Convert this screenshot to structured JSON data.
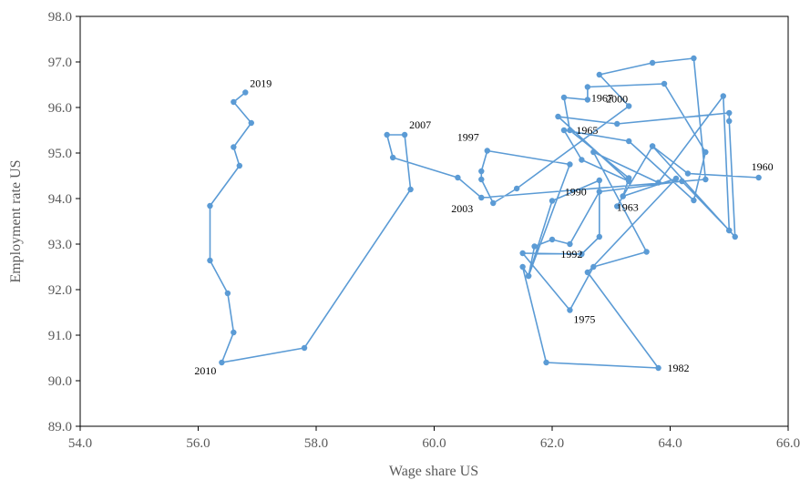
{
  "chart_data": {
    "type": "scatter",
    "title": "",
    "xlabel": "Wage share US",
    "ylabel": "Employment rate US",
    "xlim": [
      54.0,
      66.0
    ],
    "ylim": [
      89.0,
      98.0
    ],
    "x_ticks": [
      "54.0",
      "56.0",
      "58.0",
      "60.0",
      "62.0",
      "64.0",
      "66.0"
    ],
    "y_ticks": [
      "89.0",
      "90.0",
      "91.0",
      "92.0",
      "93.0",
      "94.0",
      "95.0",
      "96.0",
      "97.0",
      "98.0"
    ],
    "grid": false,
    "legend": "none",
    "connected": true,
    "series_color": "#5B9BD5",
    "points": [
      {
        "x": 65.5,
        "y": 94.46,
        "label": "1960"
      },
      {
        "x": 64.3,
        "y": 94.55
      },
      {
        "x": 63.7,
        "y": 95.15
      },
      {
        "x": 63.2,
        "y": 94.05,
        "label": "1963"
      },
      {
        "x": 63.3,
        "y": 94.45
      },
      {
        "x": 62.3,
        "y": 95.5,
        "label": "1965"
      },
      {
        "x": 62.2,
        "y": 96.22
      },
      {
        "x": 62.6,
        "y": 96.17,
        "label": "1967"
      },
      {
        "x": 62.6,
        "y": 96.45
      },
      {
        "x": 63.9,
        "y": 96.52
      },
      {
        "x": 64.6,
        "y": 95.02
      },
      {
        "x": 64.4,
        "y": 93.96
      },
      {
        "x": 63.3,
        "y": 95.26
      },
      {
        "x": 62.2,
        "y": 95.5
      },
      {
        "x": 62.5,
        "y": 94.85
      },
      {
        "x": 63.3,
        "y": 94.38
      },
      {
        "x": 62.1,
        "y": 95.8
      },
      {
        "x": 63.1,
        "y": 95.64
      },
      {
        "x": 65.0,
        "y": 95.88
      },
      {
        "x": 65.0,
        "y": 95.7
      },
      {
        "x": 65.1,
        "y": 93.16
      },
      {
        "x": 65.0,
        "y": 93.3
      },
      {
        "x": 64.9,
        "y": 96.25
      },
      {
        "x": 63.8,
        "y": 94.35
      },
      {
        "x": 62.7,
        "y": 95.02
      },
      {
        "x": 63.6,
        "y": 92.83
      },
      {
        "x": 62.7,
        "y": 92.5
      },
      {
        "x": 62.3,
        "y": 91.55,
        "label": "1975"
      },
      {
        "x": 61.5,
        "y": 92.8
      },
      {
        "x": 62.5,
        "y": 92.78
      },
      {
        "x": 62.8,
        "y": 93.16
      },
      {
        "x": 62.8,
        "y": 94.4
      },
      {
        "x": 62.0,
        "y": 93.95
      },
      {
        "x": 61.6,
        "y": 92.3
      },
      {
        "x": 61.5,
        "y": 92.5
      },
      {
        "x": 61.9,
        "y": 90.4
      },
      {
        "x": 63.8,
        "y": 90.28,
        "label": "1982"
      },
      {
        "x": 62.6,
        "y": 92.38
      },
      {
        "x": 64.1,
        "y": 94.44
      },
      {
        "x": 63.2,
        "y": 94.05
      },
      {
        "x": 63.1,
        "y": 93.83
      },
      {
        "x": 63.7,
        "y": 95.15
      },
      {
        "x": 65.0,
        "y": 93.3
      },
      {
        "x": 64.2,
        "y": 94.38
      },
      {
        "x": 62.8,
        "y": 94.15,
        "label": "1990"
      },
      {
        "x": 62.3,
        "y": 93.0,
        "label": "1992"
      },
      {
        "x": 62.0,
        "y": 93.1
      },
      {
        "x": 61.7,
        "y": 92.95
      },
      {
        "x": 61.6,
        "y": 92.3
      },
      {
        "x": 62.3,
        "y": 94.75
      },
      {
        "x": 60.9,
        "y": 95.05,
        "label": "1997"
      },
      {
        "x": 60.8,
        "y": 94.6
      },
      {
        "x": 60.8,
        "y": 94.42
      },
      {
        "x": 61.0,
        "y": 93.9
      },
      {
        "x": 61.4,
        "y": 94.22
      },
      {
        "x": 63.3,
        "y": 96.03,
        "label": "2000"
      },
      {
        "x": 62.8,
        "y": 96.72
      },
      {
        "x": 63.7,
        "y": 96.98
      },
      {
        "x": 64.4,
        "y": 97.08
      },
      {
        "x": 64.6,
        "y": 94.42
      },
      {
        "x": 60.8,
        "y": 94.02,
        "label": "2003"
      },
      {
        "x": 60.4,
        "y": 94.46
      },
      {
        "x": 59.3,
        "y": 94.9
      },
      {
        "x": 59.2,
        "y": 95.4
      },
      {
        "x": 59.5,
        "y": 95.4,
        "label": "2007"
      },
      {
        "x": 59.6,
        "y": 94.2
      },
      {
        "x": 57.8,
        "y": 90.72
      },
      {
        "x": 56.4,
        "y": 90.4,
        "label": "2010"
      },
      {
        "x": 56.6,
        "y": 91.06
      },
      {
        "x": 56.5,
        "y": 91.92
      },
      {
        "x": 56.2,
        "y": 92.64
      },
      {
        "x": 56.2,
        "y": 93.84
      },
      {
        "x": 56.7,
        "y": 94.72
      },
      {
        "x": 56.6,
        "y": 95.13
      },
      {
        "x": 56.9,
        "y": 95.66
      },
      {
        "x": 56.6,
        "y": 96.12
      },
      {
        "x": 56.8,
        "y": 96.33,
        "label": "2019"
      }
    ]
  }
}
